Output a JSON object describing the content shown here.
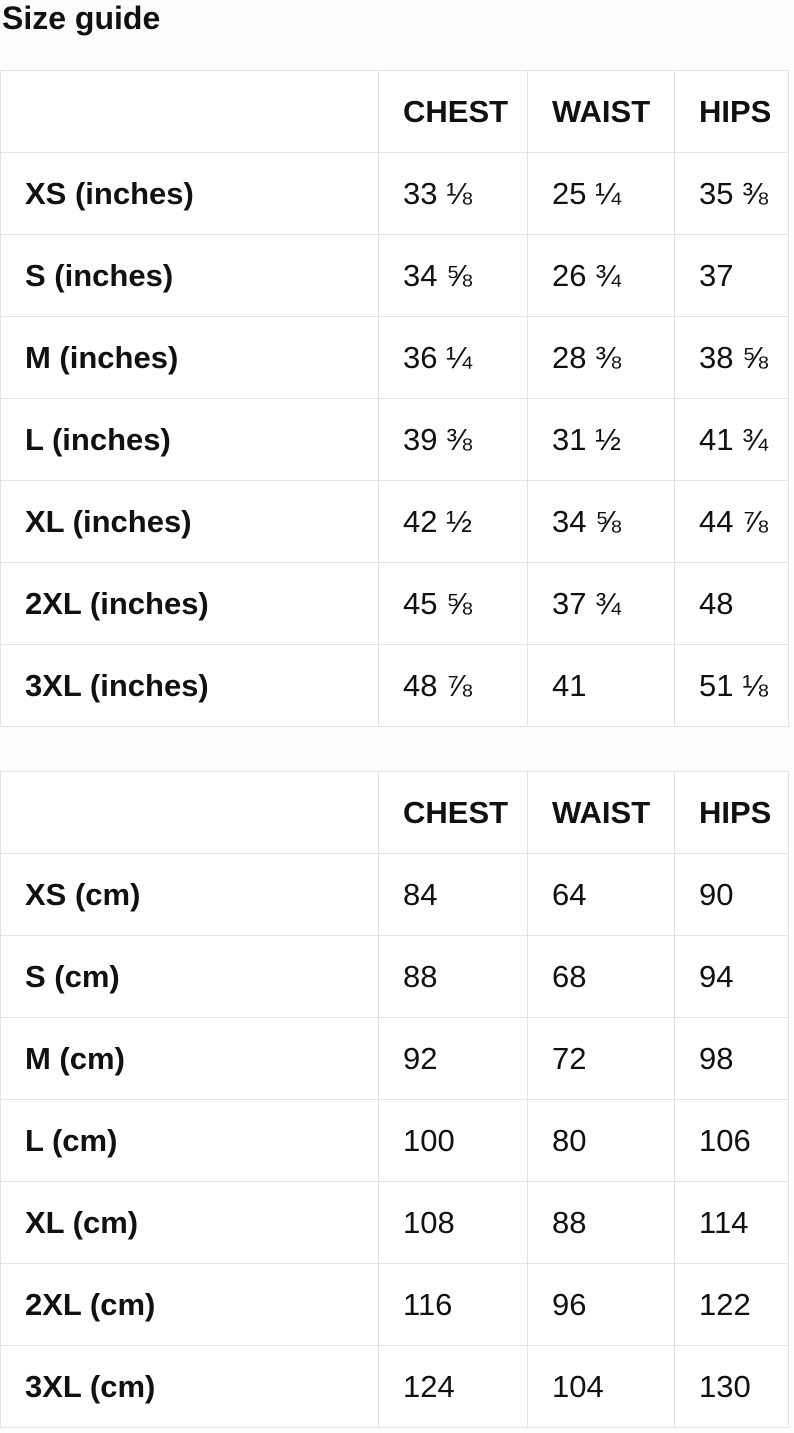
{
  "page": {
    "title": "Size guide"
  },
  "colors": {
    "page_bg": "#fcfcfc",
    "cell_bg": "#ffffff",
    "border": "#e3e3e3",
    "text": "#111111"
  },
  "tables": [
    {
      "unit": "inches",
      "columns": [
        "CHEST",
        "WAIST",
        "HIPS"
      ],
      "rows": [
        {
          "label": "XS (inches)",
          "values": [
            "33 ⅛",
            "25 ¼",
            "35 ⅜"
          ]
        },
        {
          "label": "S (inches)",
          "values": [
            "34 ⅝",
            "26 ¾",
            "37"
          ]
        },
        {
          "label": "M (inches)",
          "values": [
            "36 ¼",
            "28 ⅜",
            "38 ⅝"
          ]
        },
        {
          "label": "L (inches)",
          "values": [
            "39 ⅜",
            "31 ½",
            "41 ¾"
          ]
        },
        {
          "label": "XL (inches)",
          "values": [
            "42 ½",
            "34 ⅝",
            "44 ⅞"
          ]
        },
        {
          "label": "2XL (inches)",
          "values": [
            "45 ⅝",
            "37 ¾",
            "48"
          ]
        },
        {
          "label": "3XL (inches)",
          "values": [
            "48 ⅞",
            "41",
            "51 ⅛"
          ]
        }
      ]
    },
    {
      "unit": "cm",
      "columns": [
        "CHEST",
        "WAIST",
        "HIPS"
      ],
      "rows": [
        {
          "label": "XS (cm)",
          "values": [
            "84",
            "64",
            "90"
          ]
        },
        {
          "label": "S (cm)",
          "values": [
            "88",
            "68",
            "94"
          ]
        },
        {
          "label": "M (cm)",
          "values": [
            "92",
            "72",
            "98"
          ]
        },
        {
          "label": "L (cm)",
          "values": [
            "100",
            "80",
            "106"
          ]
        },
        {
          "label": "XL (cm)",
          "values": [
            "108",
            "88",
            "114"
          ]
        },
        {
          "label": "2XL (cm)",
          "values": [
            "116",
            "96",
            "122"
          ]
        },
        {
          "label": "3XL (cm)",
          "values": [
            "124",
            "104",
            "130"
          ]
        }
      ]
    }
  ]
}
